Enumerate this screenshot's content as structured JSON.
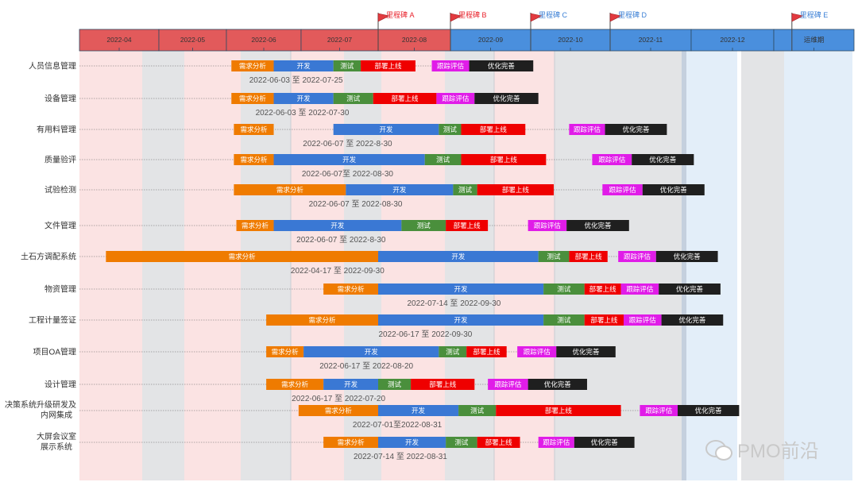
{
  "chart_data": {
    "type": "gantt",
    "months": [
      "2022-04",
      "2022-05",
      "2022-06",
      "2022-07",
      "2022-08",
      "2022-09",
      "2022-10",
      "2022-11",
      "2022-12",
      "运维期"
    ],
    "milestones": [
      {
        "label": "里程碑 A",
        "date": "2022-08-01",
        "color": "#e8202a"
      },
      {
        "label": "里程碑 B",
        "date": "2022-09-01",
        "color": "#e8202a"
      },
      {
        "label": "里程碑 C",
        "date": "2022-10-01",
        "color": "#3a7fd5"
      },
      {
        "label": "里程碑 D",
        "date": "2022-11-01",
        "color": "#3a7fd5"
      },
      {
        "label": "里程碑 E",
        "date": "2023-01-08",
        "color": "#3a7fd5"
      }
    ],
    "phase_colors": {
      "需求分析": "#ef7b00",
      "开发": "#3a78d4",
      "测试": "#4a8f3c",
      "部署上线": "#ef0000",
      "跟踪评估": "#e01ce8",
      "优化完善": "#1f1f1f"
    },
    "rows": [
      {
        "name": "人员信息管理",
        "date_label": "2022-06-03 至 2022-07-25",
        "phases": [
          {
            "phase": "需求分析",
            "start": "2022-06-03",
            "end": "2022-06-20"
          },
          {
            "phase": "开发",
            "start": "2022-06-20",
            "end": "2022-07-14"
          },
          {
            "phase": "测试",
            "start": "2022-07-14",
            "end": "2022-07-25"
          },
          {
            "phase": "部署上线",
            "start": "2022-07-25",
            "end": "2022-08-17"
          },
          {
            "phase": "跟踪评估",
            "start": "2022-08-24",
            "end": "2022-09-08"
          },
          {
            "phase": "优化完善",
            "start": "2022-09-08",
            "end": "2022-10-02"
          }
        ]
      },
      {
        "name": "设备管理",
        "date_label": "2022-06-03 至 2022-07-30",
        "phases": [
          {
            "phase": "需求分析",
            "start": "2022-06-03",
            "end": "2022-06-20"
          },
          {
            "phase": "开发",
            "start": "2022-06-20",
            "end": "2022-07-14"
          },
          {
            "phase": "测试",
            "start": "2022-07-14",
            "end": "2022-07-30"
          },
          {
            "phase": "部署上线",
            "start": "2022-07-30",
            "end": "2022-08-26"
          },
          {
            "phase": "跟踪评估",
            "start": "2022-08-26",
            "end": "2022-09-10"
          },
          {
            "phase": "优化完善",
            "start": "2022-09-10",
            "end": "2022-10-04"
          }
        ]
      },
      {
        "name": "有用料管理",
        "date_label": "2022-06-07 至 2022-8-30",
        "phases": [
          {
            "phase": "需求分析",
            "start": "2022-06-04",
            "end": "2022-06-20"
          },
          {
            "phase": "开发",
            "start": "2022-07-14",
            "end": "2022-08-27"
          },
          {
            "phase": "测试",
            "start": "2022-08-27",
            "end": "2022-09-05"
          },
          {
            "phase": "部署上线",
            "start": "2022-09-05",
            "end": "2022-09-29"
          },
          {
            "phase": "跟踪评估",
            "start": "2022-10-16",
            "end": "2022-10-30"
          },
          {
            "phase": "优化完善",
            "start": "2022-10-30",
            "end": "2022-11-22"
          }
        ]
      },
      {
        "name": "质量验评",
        "date_label": "2022-06-07至 2022-08-30",
        "phases": [
          {
            "phase": "需求分析",
            "start": "2022-06-04",
            "end": "2022-06-20"
          },
          {
            "phase": "开发",
            "start": "2022-06-20",
            "end": "2022-08-21"
          },
          {
            "phase": "测试",
            "start": "2022-08-21",
            "end": "2022-09-05"
          },
          {
            "phase": "部署上线",
            "start": "2022-09-05",
            "end": "2022-10-07"
          },
          {
            "phase": "跟踪评估",
            "start": "2022-10-25",
            "end": "2022-11-09"
          },
          {
            "phase": "优化完善",
            "start": "2022-11-09",
            "end": "2022-12-02"
          }
        ]
      },
      {
        "name": "试验检测",
        "date_label": "2022-06-07 至 2022-08-30",
        "phases": [
          {
            "phase": "需求分析",
            "start": "2022-06-04",
            "end": "2022-07-19"
          },
          {
            "phase": "开发",
            "start": "2022-07-19",
            "end": "2022-09-02"
          },
          {
            "phase": "测试",
            "start": "2022-09-02",
            "end": "2022-09-11"
          },
          {
            "phase": "部署上线",
            "start": "2022-09-11",
            "end": "2022-10-10"
          },
          {
            "phase": "跟踪评估",
            "start": "2022-10-29",
            "end": "2022-11-13"
          },
          {
            "phase": "优化完善",
            "start": "2022-11-13",
            "end": "2022-12-06"
          }
        ]
      },
      {
        "name": "文件管理",
        "date_label": "2022-06-07 至 2022-8-30",
        "phases": [
          {
            "phase": "需求分析",
            "start": "2022-06-05",
            "end": "2022-06-20"
          },
          {
            "phase": "开发",
            "start": "2022-06-20",
            "end": "2022-08-11"
          },
          {
            "phase": "测试",
            "start": "2022-08-11",
            "end": "2022-08-30"
          },
          {
            "phase": "部署上线",
            "start": "2022-08-30",
            "end": "2022-09-15"
          },
          {
            "phase": "跟踪评估",
            "start": "2022-09-30",
            "end": "2022-10-15"
          },
          {
            "phase": "优化完善",
            "start": "2022-10-15",
            "end": "2022-11-08"
          }
        ]
      },
      {
        "name": "土石方调配系统",
        "date_label": "2022-04-17 至 2022-09-30",
        "phases": [
          {
            "phase": "需求分析",
            "start": "2022-04-11",
            "end": "2022-08-01"
          },
          {
            "phase": "开发",
            "start": "2022-08-01",
            "end": "2022-10-04"
          },
          {
            "phase": "测试",
            "start": "2022-10-04",
            "end": "2022-10-16"
          },
          {
            "phase": "部署上线",
            "start": "2022-10-16",
            "end": "2022-10-31"
          },
          {
            "phase": "跟踪评估",
            "start": "2022-11-04",
            "end": "2022-11-18"
          },
          {
            "phase": "优化完善",
            "start": "2022-11-18",
            "end": "2022-12-11"
          }
        ]
      },
      {
        "name": "物资管理",
        "date_label": "2022-07-14 至 2022-09-30",
        "phases": [
          {
            "phase": "需求分析",
            "start": "2022-07-10",
            "end": "2022-08-01"
          },
          {
            "phase": "开发",
            "start": "2022-08-01",
            "end": "2022-10-06"
          },
          {
            "phase": "测试",
            "start": "2022-10-06",
            "end": "2022-10-22"
          },
          {
            "phase": "部署上线",
            "start": "2022-10-22",
            "end": "2022-11-05"
          },
          {
            "phase": "跟踪评估",
            "start": "2022-11-05",
            "end": "2022-11-19"
          },
          {
            "phase": "优化完善",
            "start": "2022-11-19",
            "end": "2022-12-12"
          }
        ]
      },
      {
        "name": "工程计量签证",
        "date_label": "2022-06-17 至 2022-09-30",
        "phases": [
          {
            "phase": "需求分析",
            "start": "2022-06-17",
            "end": "2022-08-01"
          },
          {
            "phase": "开发",
            "start": "2022-08-01",
            "end": "2022-10-06"
          },
          {
            "phase": "测试",
            "start": "2022-10-06",
            "end": "2022-10-22"
          },
          {
            "phase": "部署上线",
            "start": "2022-10-22",
            "end": "2022-11-06"
          },
          {
            "phase": "跟踪评估",
            "start": "2022-11-06",
            "end": "2022-11-20"
          },
          {
            "phase": "优化完善",
            "start": "2022-11-20",
            "end": "2022-12-13"
          }
        ]
      },
      {
        "name": "项目OA管理",
        "date_label": "2022-06-17 至 2022-08-20",
        "phases": [
          {
            "phase": "需求分析",
            "start": "2022-06-17",
            "end": "2022-07-02"
          },
          {
            "phase": "开发",
            "start": "2022-07-02",
            "end": "2022-08-27"
          },
          {
            "phase": "测试",
            "start": "2022-08-27",
            "end": "2022-09-07"
          },
          {
            "phase": "部署上线",
            "start": "2022-09-07",
            "end": "2022-09-22"
          },
          {
            "phase": "跟踪评估",
            "start": "2022-09-26",
            "end": "2022-10-11"
          },
          {
            "phase": "优化完善",
            "start": "2022-10-11",
            "end": "2022-11-03"
          }
        ]
      },
      {
        "name": "设计管理",
        "date_label": "2022-06-17 至 2022-07-20",
        "phases": [
          {
            "phase": "需求分析",
            "start": "2022-06-17",
            "end": "2022-07-10"
          },
          {
            "phase": "开发",
            "start": "2022-07-10",
            "end": "2022-08-01"
          },
          {
            "phase": "测试",
            "start": "2022-08-01",
            "end": "2022-08-15"
          },
          {
            "phase": "部署上线",
            "start": "2022-08-15",
            "end": "2022-09-10"
          },
          {
            "phase": "跟踪评估",
            "start": "2022-09-15",
            "end": "2022-09-30"
          },
          {
            "phase": "优化完善",
            "start": "2022-09-30",
            "end": "2022-10-23"
          }
        ]
      },
      {
        "name": "决策系统升级研发及内网集成",
        "date_label": "2022-07-01至2022-08-31",
        "phases": [
          {
            "phase": "需求分析",
            "start": "2022-06-30",
            "end": "2022-08-01"
          },
          {
            "phase": "开发",
            "start": "2022-08-01",
            "end": "2022-09-04"
          },
          {
            "phase": "测试",
            "start": "2022-09-04",
            "end": "2022-09-18"
          },
          {
            "phase": "部署上线",
            "start": "2022-09-18",
            "end": "2022-11-05"
          },
          {
            "phase": "跟踪评估",
            "start": "2022-11-12",
            "end": "2022-11-26"
          },
          {
            "phase": "优化完善",
            "start": "2022-11-26",
            "end": "2022-12-19"
          }
        ]
      },
      {
        "name": "大屏会议室展示系统",
        "date_label": "2022-07-14 至 2022-08-31",
        "phases": [
          {
            "phase": "需求分析",
            "start": "2022-07-10",
            "end": "2022-08-01"
          },
          {
            "phase": "开发",
            "start": "2022-08-01",
            "end": "2022-08-30"
          },
          {
            "phase": "测试",
            "start": "2022-08-30",
            "end": "2022-09-11"
          },
          {
            "phase": "部署上线",
            "start": "2022-09-11",
            "end": "2022-09-27"
          },
          {
            "phase": "跟踪评估",
            "start": "2022-10-04",
            "end": "2022-10-18"
          },
          {
            "phase": "优化完善",
            "start": "2022-10-18",
            "end": "2022-11-10"
          }
        ]
      }
    ]
  },
  "watermark": {
    "text": "PMO前沿",
    "icon": "wechat-icon"
  }
}
